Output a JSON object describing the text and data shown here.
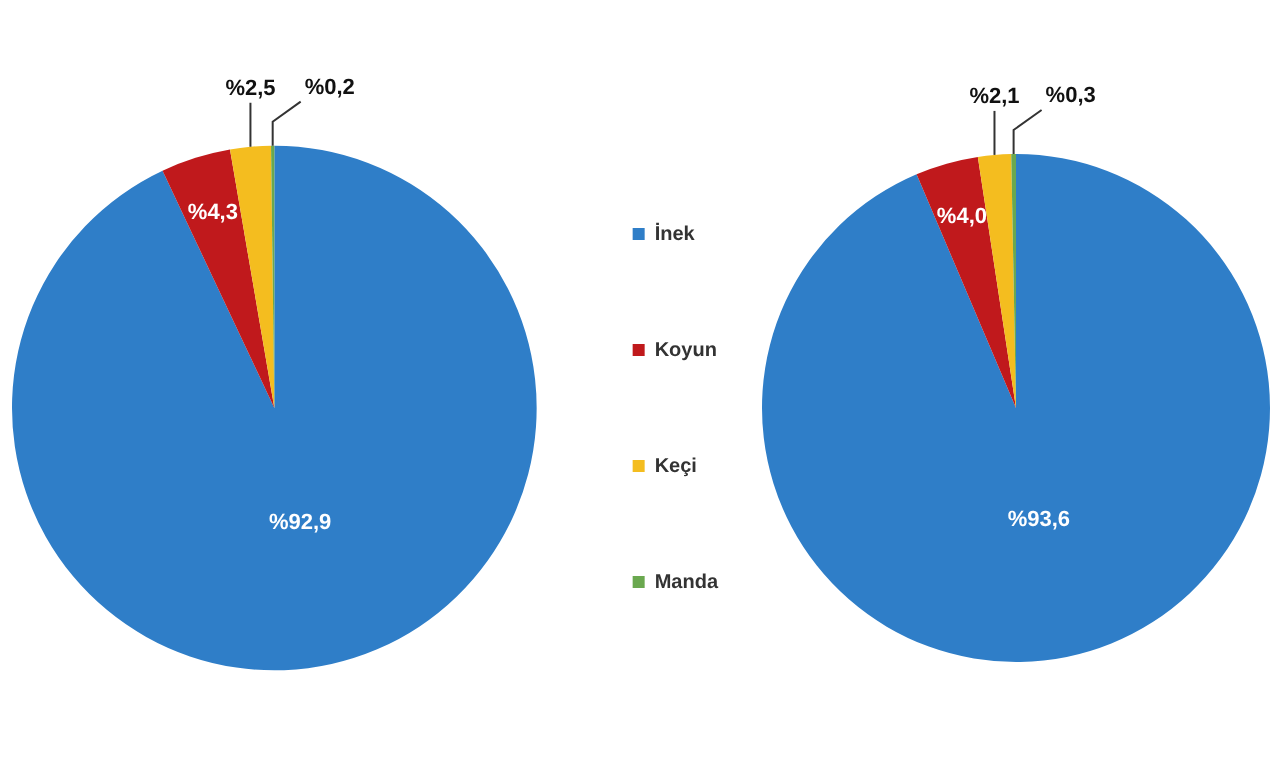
{
  "chart_data": [
    {
      "type": "pie",
      "categories": [
        "İnek",
        "Koyun",
        "Keçi",
        "Manda"
      ],
      "values": [
        92.9,
        4.3,
        2.5,
        0.2
      ],
      "colors": [
        "#2f7ec8",
        "#c0191c",
        "#f4bd1f",
        "#6aa84f"
      ],
      "value_labels": [
        "%92,9",
        "%4,3",
        "%2,5",
        "%0,2"
      ],
      "legend": "right"
    },
    {
      "type": "pie",
      "categories": [
        null,
        null,
        null,
        null
      ],
      "values": [
        93.6,
        4.0,
        2.1,
        0.3
      ],
      "colors": [
        "#2f7ec8",
        "#c0191c",
        "#f4bd1f",
        "#6aa84f"
      ],
      "value_labels": [
        "%93,6",
        "%4,0",
        "%2,1",
        "%0,3"
      ]
    }
  ]
}
